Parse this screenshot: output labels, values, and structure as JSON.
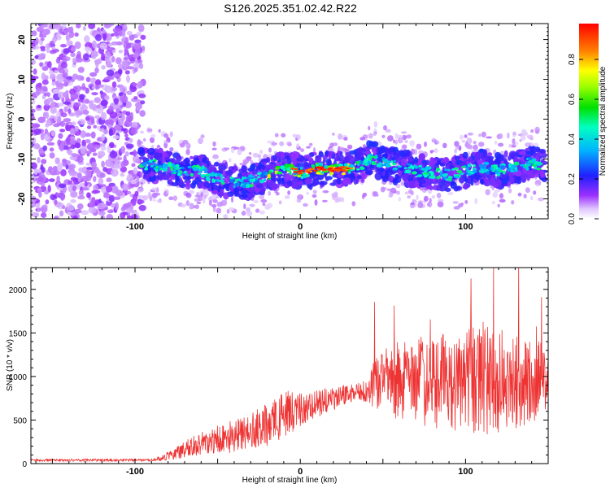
{
  "title": "S126.2025.351.02.42.R22",
  "chart_data": [
    {
      "type": "heatmap",
      "title": "S126.2025.351.02.42.R22",
      "xlabel": "Height of straight line (km)",
      "ylabel": "Frequency (Hz)",
      "xlim": [
        -163,
        150
      ],
      "ylim": [
        -25,
        24
      ],
      "xticks": [
        -100,
        0,
        100
      ],
      "yticks": [
        -20,
        -10,
        0,
        10,
        20
      ],
      "noise_region_x": [
        -163,
        -95
      ],
      "ridge": {
        "x": [
          -97,
          -90,
          -80,
          -70,
          -60,
          -50,
          -40,
          -30,
          -20,
          -12,
          -5,
          0,
          5,
          10,
          20,
          30,
          38,
          42,
          50,
          60,
          70,
          80,
          90,
          100,
          110,
          120,
          130,
          140,
          148
        ],
        "frequency_hz": [
          -11,
          -11.5,
          -12,
          -13,
          -13,
          -15,
          -16,
          -15.5,
          -14,
          -12.5,
          -12.5,
          -13.5,
          -13,
          -12.5,
          -12.5,
          -12.5,
          -11.5,
          -9.5,
          -11,
          -12,
          -13,
          -13.5,
          -14,
          -13,
          -12,
          -13,
          -12,
          -11,
          -11.5
        ]
      },
      "colorbar": {
        "label": "Normalized spectral amplitude",
        "min": 0.0,
        "max": 0.98,
        "ticks": [
          "0.0",
          "0.2",
          "0.4",
          "0.6",
          "0.8"
        ]
      }
    },
    {
      "type": "line",
      "xlabel": "Height of straight line (km)",
      "ylabel": "SNR (10 * v/v)",
      "xlim": [
        -163,
        150
      ],
      "ylim": [
        0,
        2250
      ],
      "xticks": [
        -100,
        0,
        100
      ],
      "yticks": [
        0,
        500,
        1000,
        1500,
        2000
      ],
      "color": "#ee3333",
      "series": [
        {
          "name": "SNR",
          "x": [
            -163,
            -140,
            -110,
            -90,
            -85,
            -75,
            -65,
            -55,
            -45,
            -35,
            -25,
            -15,
            -5,
            5,
            15,
            25,
            35,
            40,
            45,
            55,
            65,
            75,
            85,
            95,
            105,
            115,
            125,
            135,
            145,
            150
          ],
          "trend": [
            40,
            40,
            40,
            40,
            60,
            120,
            200,
            250,
            300,
            330,
            400,
            500,
            580,
            650,
            720,
            780,
            830,
            850,
            900,
            950,
            950,
            950,
            950,
            950,
            950,
            950,
            950,
            950,
            950,
            950
          ],
          "amplitude": [
            15,
            15,
            15,
            15,
            30,
            70,
            120,
            150,
            180,
            200,
            230,
            260,
            280,
            150,
            150,
            130,
            90,
            150,
            300,
            420,
            480,
            520,
            560,
            600,
            620,
            620,
            580,
            520,
            450,
            420
          ],
          "peak": {
            "x": 117,
            "y": 2250
          }
        }
      ]
    }
  ]
}
